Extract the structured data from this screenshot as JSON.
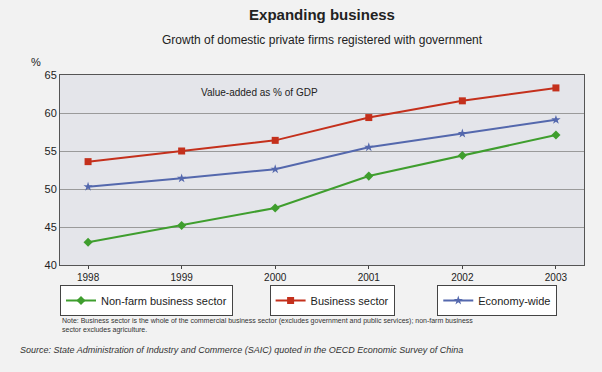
{
  "chart_data": {
    "type": "line",
    "title": "Expanding business",
    "subtitle": "Growth of domestic private firms registered with government",
    "ylabel": "%",
    "annotations": [
      "Value-added as % of GDP"
    ],
    "note": "Note: Business sector is the whole of the commercial business sector (excludes government and public services); non-farm business sector excludes agriculture.",
    "source": "Source: State Administration of Industry and Commerce (SAIC) quoted in the OECD Economic Survey of China",
    "x": [
      1998,
      1999,
      2000,
      2001,
      2002,
      2003
    ],
    "xlim": [
      1997.7,
      2003.3
    ],
    "xticks": [
      1998,
      1999,
      2000,
      2001,
      2002,
      2003
    ],
    "ylim": [
      40,
      65
    ],
    "yticks": [
      40,
      45,
      50,
      55,
      60,
      65
    ],
    "grid": true,
    "legend": "bottom",
    "series": [
      {
        "name": "Non-farm business sector",
        "color": "#3f9e2e",
        "marker": "diamond",
        "values": [
          43.0,
          45.2,
          47.5,
          51.7,
          54.4,
          57.1
        ]
      },
      {
        "name": "Business sector",
        "color": "#c4301c",
        "marker": "square",
        "values": [
          53.6,
          55.0,
          56.4,
          59.4,
          61.6,
          63.3
        ]
      },
      {
        "name": "Economy-wide",
        "color": "#5468ad",
        "marker": "star",
        "values": [
          50.3,
          51.4,
          52.6,
          55.5,
          57.3,
          59.1
        ]
      }
    ]
  }
}
